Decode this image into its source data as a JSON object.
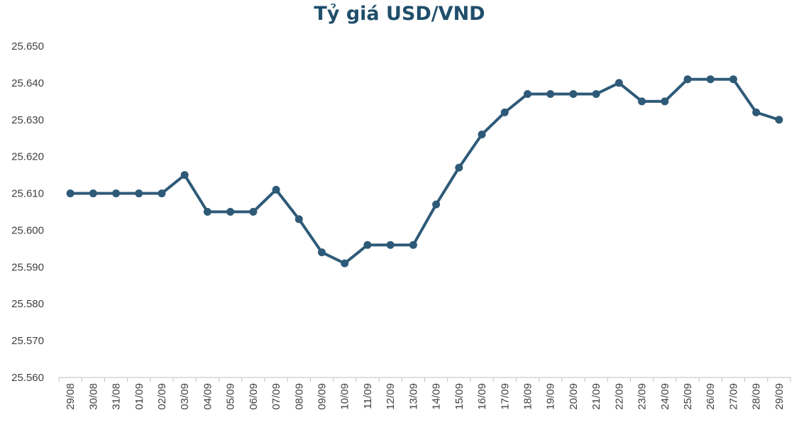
{
  "chart_data": {
    "type": "line",
    "title": "Tỷ giá USD/VND",
    "xlabel": "",
    "ylabel": "",
    "ylim": [
      25560,
      25650
    ],
    "yticks": [
      "25.560",
      "25.570",
      "25.580",
      "25.590",
      "25.600",
      "25.610",
      "25.620",
      "25.630",
      "25.640",
      "25.650"
    ],
    "categories": [
      "29/08",
      "30/08",
      "31/08",
      "01/09",
      "02/09",
      "03/09",
      "04/09",
      "05/09",
      "06/09",
      "07/09",
      "08/09",
      "09/09",
      "10/09",
      "11/09",
      "12/09",
      "13/09",
      "14/09",
      "15/09",
      "16/09",
      "17/09",
      "18/09",
      "19/09",
      "20/09",
      "21/09",
      "22/09",
      "23/09",
      "24/09",
      "25/09",
      "26/09",
      "27/09",
      "28/09",
      "29/09"
    ],
    "series": [
      {
        "values": [
          25610,
          25610,
          25610,
          25610,
          25610,
          25615,
          25605,
          25605,
          25605,
          25611,
          25603,
          25594,
          25591,
          25596,
          25596,
          25596,
          25607,
          25617,
          25626,
          25632,
          25637,
          25637,
          25637,
          25637,
          25640,
          25635,
          25635,
          25641,
          25641,
          25641,
          25632,
          25630
        ],
        "color": "#2e5a78"
      }
    ],
    "grid": false,
    "legend": "none"
  }
}
